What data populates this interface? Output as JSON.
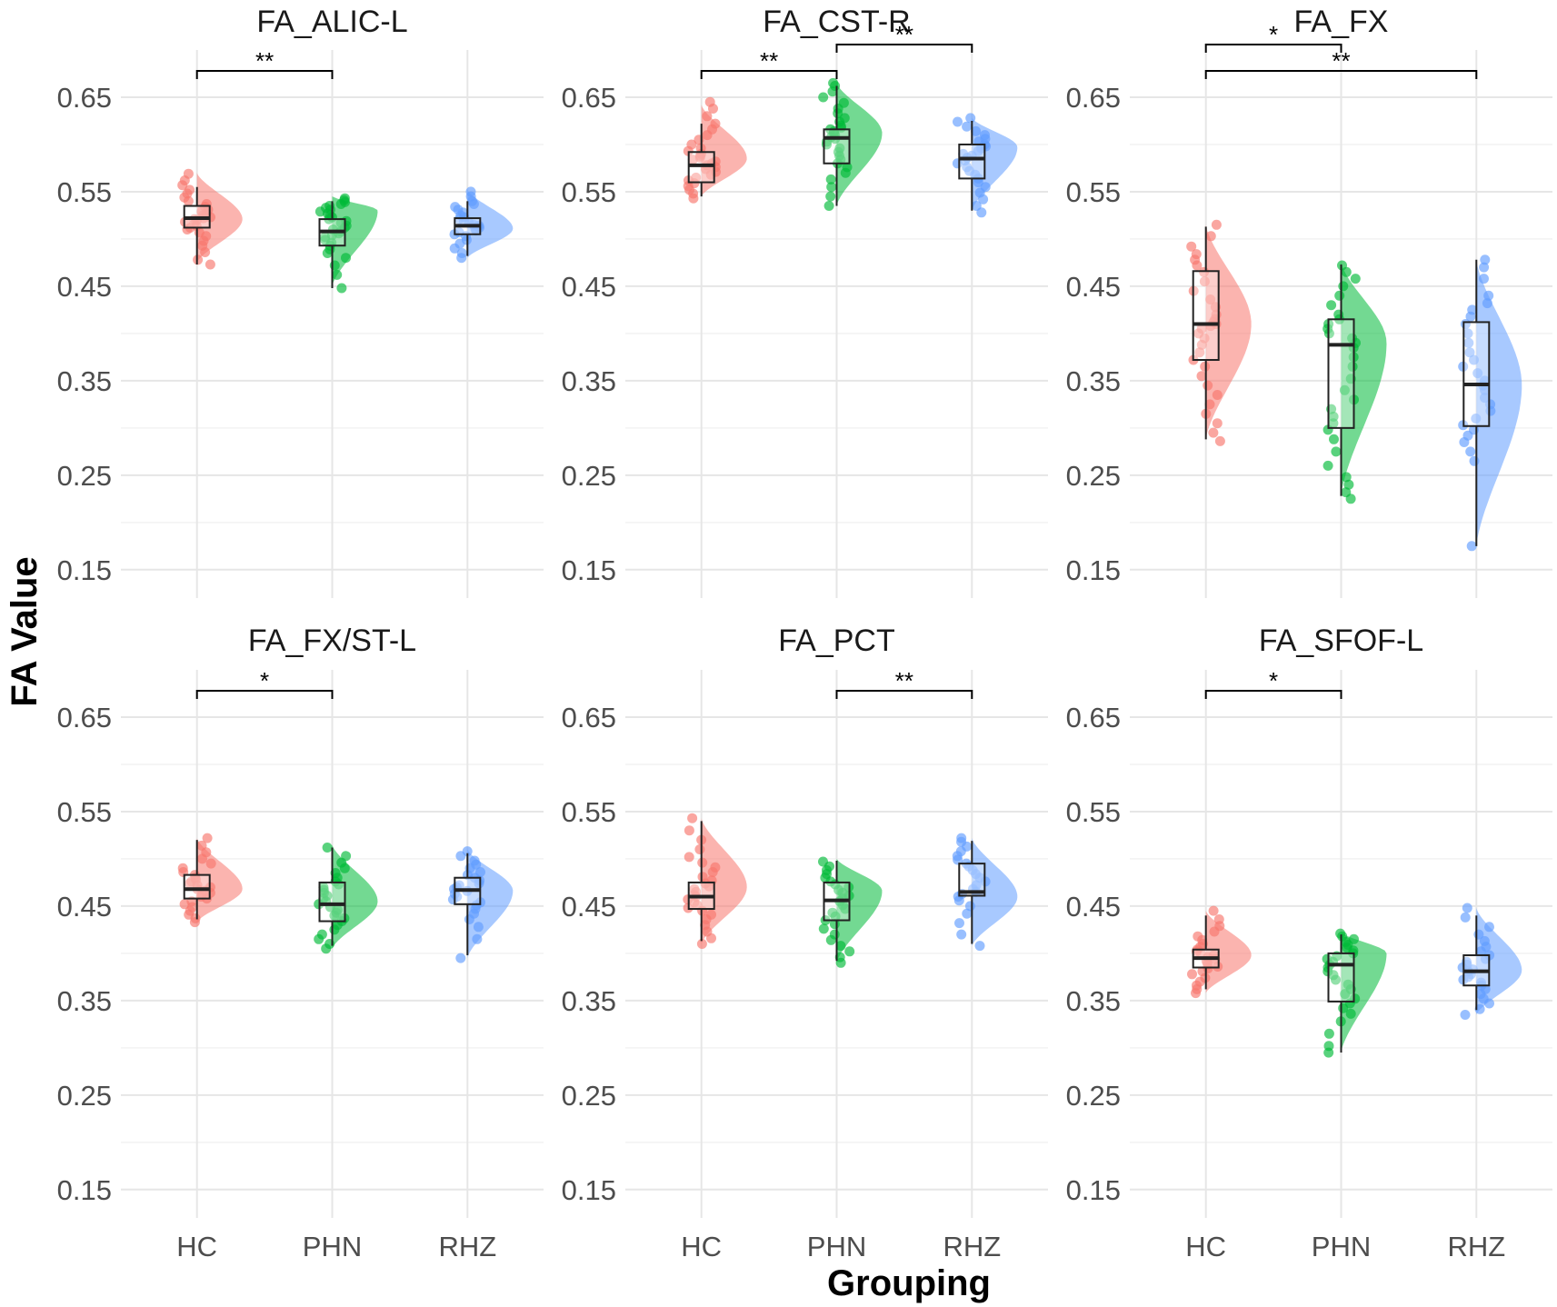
{
  "figure": {
    "ylabel": "FA Value",
    "xlabel": "Grouping"
  },
  "colors": {
    "HC": "#F8766D",
    "PHN": "#00BA38",
    "RHZ": "#619CFF",
    "grid_major": "#e6e6e6",
    "grid_minor": "#f2f2f2",
    "axis_text": "#4d4d4d",
    "title_text": "#1a1a1a",
    "box_stroke": "#222222"
  },
  "chart_data": [
    {
      "type": "raincloud",
      "title": "FA_ALIC-L",
      "categories": [
        "HC",
        "PHN",
        "RHZ"
      ],
      "ylim": [
        0.12,
        0.7
      ],
      "yticks": [
        0.15,
        0.25,
        0.35,
        0.45,
        0.55,
        0.65
      ],
      "ytick_labels": [
        "0.15",
        "0.25",
        "0.35",
        "0.45",
        "0.55",
        "0.65"
      ],
      "series": [
        {
          "name": "HC",
          "min": 0.473,
          "q1": 0.512,
          "median": 0.522,
          "q3": 0.535,
          "max": 0.555,
          "density_peak": 0.521,
          "density_lo": 0.475,
          "density_hi": 0.57,
          "points": [
            0.473,
            0.478,
            0.486,
            0.493,
            0.498,
            0.503,
            0.507,
            0.51,
            0.512,
            0.514,
            0.516,
            0.518,
            0.52,
            0.521,
            0.522,
            0.523,
            0.525,
            0.527,
            0.529,
            0.531,
            0.534,
            0.537,
            0.54,
            0.544,
            0.548,
            0.552,
            0.557,
            0.562,
            0.569
          ]
        },
        {
          "name": "PHN",
          "min": 0.448,
          "q1": 0.493,
          "median": 0.508,
          "q3": 0.521,
          "max": 0.54,
          "density_peak": 0.53,
          "density_lo": 0.45,
          "density_hi": 0.545,
          "points": [
            0.448,
            0.462,
            0.472,
            0.48,
            0.485,
            0.489,
            0.493,
            0.496,
            0.499,
            0.502,
            0.504,
            0.506,
            0.508,
            0.51,
            0.512,
            0.514,
            0.517,
            0.519,
            0.521,
            0.523,
            0.525,
            0.527,
            0.529,
            0.531,
            0.533,
            0.535,
            0.537,
            0.539,
            0.541,
            0.543
          ]
        },
        {
          "name": "RHZ",
          "min": 0.482,
          "q1": 0.505,
          "median": 0.514,
          "q3": 0.522,
          "max": 0.54,
          "density_peak": 0.511,
          "density_lo": 0.48,
          "density_hi": 0.552,
          "points": [
            0.48,
            0.485,
            0.49,
            0.495,
            0.499,
            0.503,
            0.505,
            0.507,
            0.509,
            0.511,
            0.512,
            0.513,
            0.514,
            0.515,
            0.517,
            0.519,
            0.521,
            0.523,
            0.525,
            0.528,
            0.531,
            0.534,
            0.537,
            0.54,
            0.545,
            0.55
          ]
        }
      ],
      "significance": [
        {
          "from": "HC",
          "to": "PHN",
          "label": "**",
          "level": 0
        }
      ]
    },
    {
      "type": "raincloud",
      "title": "FA_CST-R",
      "categories": [
        "HC",
        "PHN",
        "RHZ"
      ],
      "ylim": [
        0.12,
        0.7
      ],
      "yticks": [
        0.15,
        0.25,
        0.35,
        0.45,
        0.55,
        0.65
      ],
      "ytick_labels": [
        "0.15",
        "0.25",
        "0.35",
        "0.45",
        "0.55",
        "0.65"
      ],
      "series": [
        {
          "name": "HC",
          "min": 0.545,
          "q1": 0.56,
          "median": 0.578,
          "q3": 0.592,
          "max": 0.622,
          "density_peak": 0.585,
          "density_lo": 0.545,
          "density_hi": 0.642,
          "points": [
            0.543,
            0.548,
            0.552,
            0.556,
            0.559,
            0.562,
            0.565,
            0.568,
            0.571,
            0.574,
            0.576,
            0.578,
            0.58,
            0.582,
            0.584,
            0.586,
            0.588,
            0.59,
            0.593,
            0.596,
            0.6,
            0.605,
            0.61,
            0.616,
            0.622,
            0.63,
            0.638,
            0.645
          ]
        },
        {
          "name": "PHN",
          "min": 0.535,
          "q1": 0.58,
          "median": 0.607,
          "q3": 0.616,
          "max": 0.662,
          "density_peak": 0.612,
          "density_lo": 0.535,
          "density_hi": 0.665,
          "points": [
            0.535,
            0.545,
            0.555,
            0.563,
            0.57,
            0.576,
            0.58,
            0.584,
            0.588,
            0.592,
            0.596,
            0.6,
            0.603,
            0.606,
            0.608,
            0.61,
            0.612,
            0.614,
            0.616,
            0.618,
            0.62,
            0.624,
            0.628,
            0.633,
            0.638,
            0.644,
            0.65,
            0.656,
            0.662,
            0.665
          ]
        },
        {
          "name": "RHZ",
          "min": 0.53,
          "q1": 0.564,
          "median": 0.585,
          "q3": 0.6,
          "max": 0.625,
          "density_peak": 0.597,
          "density_lo": 0.53,
          "density_hi": 0.628,
          "points": [
            0.528,
            0.535,
            0.542,
            0.549,
            0.555,
            0.56,
            0.564,
            0.568,
            0.572,
            0.576,
            0.58,
            0.583,
            0.586,
            0.588,
            0.59,
            0.593,
            0.596,
            0.598,
            0.6,
            0.603,
            0.606,
            0.61,
            0.614,
            0.619,
            0.624,
            0.628
          ]
        }
      ],
      "significance": [
        {
          "from": "HC",
          "to": "PHN",
          "label": "**",
          "level": 0
        },
        {
          "from": "PHN",
          "to": "RHZ",
          "label": "**",
          "level": 1
        }
      ]
    },
    {
      "type": "raincloud",
      "title": "FA_FX",
      "categories": [
        "HC",
        "PHN",
        "RHZ"
      ],
      "ylim": [
        0.12,
        0.7
      ],
      "yticks": [
        0.15,
        0.25,
        0.35,
        0.45,
        0.55,
        0.65
      ],
      "ytick_labels": [
        "0.15",
        "0.25",
        "0.35",
        "0.45",
        "0.55",
        "0.65"
      ],
      "series": [
        {
          "name": "HC",
          "min": 0.288,
          "q1": 0.372,
          "median": 0.41,
          "q3": 0.466,
          "max": 0.513,
          "density_peak": 0.41,
          "density_lo": 0.288,
          "density_hi": 0.515,
          "points": [
            0.286,
            0.295,
            0.305,
            0.315,
            0.325,
            0.335,
            0.345,
            0.355,
            0.365,
            0.372,
            0.38,
            0.388,
            0.395,
            0.4,
            0.405,
            0.408,
            0.41,
            0.412,
            0.415,
            0.42,
            0.428,
            0.436,
            0.445,
            0.455,
            0.465,
            0.472,
            0.478,
            0.484,
            0.492,
            0.503,
            0.515
          ]
        },
        {
          "name": "PHN",
          "min": 0.228,
          "q1": 0.3,
          "median": 0.388,
          "q3": 0.415,
          "max": 0.473,
          "density_peak": 0.39,
          "density_lo": 0.228,
          "density_hi": 0.475,
          "points": [
            0.225,
            0.232,
            0.24,
            0.248,
            0.26,
            0.275,
            0.288,
            0.298,
            0.305,
            0.312,
            0.32,
            0.33,
            0.34,
            0.352,
            0.365,
            0.375,
            0.385,
            0.39,
            0.395,
            0.4,
            0.405,
            0.41,
            0.415,
            0.42,
            0.43,
            0.44,
            0.45,
            0.458,
            0.465,
            0.472
          ]
        },
        {
          "name": "RHZ",
          "min": 0.175,
          "q1": 0.302,
          "median": 0.346,
          "q3": 0.412,
          "max": 0.478,
          "density_peak": 0.345,
          "density_lo": 0.175,
          "density_hi": 0.478,
          "points": [
            0.175,
            0.265,
            0.275,
            0.285,
            0.292,
            0.298,
            0.303,
            0.31,
            0.318,
            0.325,
            0.332,
            0.34,
            0.345,
            0.35,
            0.358,
            0.365,
            0.372,
            0.38,
            0.39,
            0.4,
            0.41,
            0.418,
            0.425,
            0.432,
            0.44,
            0.458,
            0.47,
            0.478
          ]
        }
      ],
      "significance": [
        {
          "from": "HC",
          "to": "PHN",
          "label": "*",
          "level": 1
        },
        {
          "from": "HC",
          "to": "RHZ",
          "label": "**",
          "level": 0
        }
      ]
    },
    {
      "type": "raincloud",
      "title": "FA_FX/ST-L",
      "categories": [
        "HC",
        "PHN",
        "RHZ"
      ],
      "ylim": [
        0.12,
        0.7
      ],
      "yticks": [
        0.15,
        0.25,
        0.35,
        0.45,
        0.55,
        0.65
      ],
      "ytick_labels": [
        "0.15",
        "0.25",
        "0.35",
        "0.45",
        "0.55",
        "0.65"
      ],
      "series": [
        {
          "name": "HC",
          "min": 0.436,
          "q1": 0.458,
          "median": 0.468,
          "q3": 0.483,
          "max": 0.52,
          "density_peak": 0.468,
          "density_lo": 0.433,
          "density_hi": 0.522,
          "points": [
            0.433,
            0.437,
            0.441,
            0.445,
            0.449,
            0.452,
            0.455,
            0.458,
            0.46,
            0.462,
            0.464,
            0.466,
            0.468,
            0.47,
            0.472,
            0.474,
            0.476,
            0.478,
            0.48,
            0.483,
            0.486,
            0.49,
            0.495,
            0.5,
            0.507,
            0.514,
            0.522
          ]
        },
        {
          "name": "PHN",
          "min": 0.408,
          "q1": 0.434,
          "median": 0.452,
          "q3": 0.475,
          "max": 0.512,
          "density_peak": 0.455,
          "density_lo": 0.405,
          "density_hi": 0.515,
          "points": [
            0.405,
            0.41,
            0.415,
            0.42,
            0.425,
            0.43,
            0.434,
            0.437,
            0.44,
            0.443,
            0.446,
            0.449,
            0.452,
            0.455,
            0.458,
            0.461,
            0.464,
            0.467,
            0.47,
            0.473,
            0.476,
            0.48,
            0.485,
            0.49,
            0.496,
            0.503,
            0.512
          ]
        },
        {
          "name": "RHZ",
          "min": 0.398,
          "q1": 0.452,
          "median": 0.467,
          "q3": 0.48,
          "max": 0.506,
          "density_peak": 0.466,
          "density_lo": 0.395,
          "density_hi": 0.51,
          "points": [
            0.395,
            0.415,
            0.428,
            0.436,
            0.442,
            0.447,
            0.451,
            0.454,
            0.457,
            0.46,
            0.463,
            0.466,
            0.468,
            0.47,
            0.472,
            0.474,
            0.477,
            0.48,
            0.483,
            0.486,
            0.49,
            0.494,
            0.498,
            0.503,
            0.508
          ]
        }
      ],
      "significance": [
        {
          "from": "HC",
          "to": "PHN",
          "label": "*",
          "level": 0
        }
      ]
    },
    {
      "type": "raincloud",
      "title": "FA_PCT",
      "categories": [
        "HC",
        "PHN",
        "RHZ"
      ],
      "ylim": [
        0.12,
        0.7
      ],
      "yticks": [
        0.15,
        0.25,
        0.35,
        0.45,
        0.55,
        0.65
      ],
      "ytick_labels": [
        "0.15",
        "0.25",
        "0.35",
        "0.45",
        "0.55",
        "0.65"
      ],
      "series": [
        {
          "name": "HC",
          "min": 0.413,
          "q1": 0.447,
          "median": 0.46,
          "q3": 0.475,
          "max": 0.54,
          "density_peak": 0.47,
          "density_lo": 0.41,
          "density_hi": 0.543,
          "points": [
            0.41,
            0.416,
            0.423,
            0.43,
            0.436,
            0.441,
            0.445,
            0.448,
            0.451,
            0.454,
            0.457,
            0.46,
            0.462,
            0.465,
            0.468,
            0.471,
            0.474,
            0.477,
            0.481,
            0.486,
            0.491,
            0.496,
            0.502,
            0.51,
            0.52,
            0.53,
            0.543
          ]
        },
        {
          "name": "PHN",
          "min": 0.392,
          "q1": 0.435,
          "median": 0.456,
          "q3": 0.475,
          "max": 0.498,
          "density_peak": 0.466,
          "density_lo": 0.39,
          "density_hi": 0.5,
          "points": [
            0.39,
            0.396,
            0.402,
            0.408,
            0.414,
            0.42,
            0.426,
            0.431,
            0.435,
            0.439,
            0.443,
            0.447,
            0.451,
            0.455,
            0.458,
            0.461,
            0.464,
            0.467,
            0.47,
            0.473,
            0.476,
            0.48,
            0.484,
            0.488,
            0.492,
            0.497
          ]
        },
        {
          "name": "RHZ",
          "min": 0.41,
          "q1": 0.461,
          "median": 0.465,
          "q3": 0.495,
          "max": 0.519,
          "density_peak": 0.46,
          "density_lo": 0.408,
          "density_hi": 0.522,
          "points": [
            0.408,
            0.42,
            0.432,
            0.442,
            0.45,
            0.456,
            0.46,
            0.463,
            0.465,
            0.468,
            0.472,
            0.476,
            0.48,
            0.484,
            0.488,
            0.492,
            0.495,
            0.499,
            0.503,
            0.508,
            0.513,
            0.518,
            0.522
          ]
        }
      ],
      "significance": [
        {
          "from": "PHN",
          "to": "RHZ",
          "label": "**",
          "level": 0
        }
      ]
    },
    {
      "type": "raincloud",
      "title": "FA_SFOF-L",
      "categories": [
        "HC",
        "PHN",
        "RHZ"
      ],
      "ylim": [
        0.12,
        0.7
      ],
      "yticks": [
        0.15,
        0.25,
        0.35,
        0.45,
        0.55,
        0.65
      ],
      "ytick_labels": [
        "0.15",
        "0.25",
        "0.35",
        "0.45",
        "0.55",
        "0.65"
      ],
      "series": [
        {
          "name": "HC",
          "min": 0.362,
          "q1": 0.385,
          "median": 0.395,
          "q3": 0.404,
          "max": 0.44,
          "density_peak": 0.398,
          "density_lo": 0.358,
          "density_hi": 0.445,
          "points": [
            0.358,
            0.362,
            0.366,
            0.37,
            0.374,
            0.378,
            0.381,
            0.384,
            0.386,
            0.388,
            0.39,
            0.392,
            0.394,
            0.396,
            0.398,
            0.4,
            0.402,
            0.404,
            0.407,
            0.41,
            0.414,
            0.418,
            0.423,
            0.429,
            0.436,
            0.445
          ]
        },
        {
          "name": "PHN",
          "min": 0.295,
          "q1": 0.349,
          "median": 0.388,
          "q3": 0.4,
          "max": 0.42,
          "density_peak": 0.4,
          "density_lo": 0.295,
          "density_hi": 0.422,
          "points": [
            0.295,
            0.302,
            0.315,
            0.328,
            0.336,
            0.342,
            0.347,
            0.352,
            0.357,
            0.362,
            0.367,
            0.372,
            0.377,
            0.381,
            0.385,
            0.388,
            0.391,
            0.394,
            0.397,
            0.4,
            0.403,
            0.406,
            0.409,
            0.412,
            0.415,
            0.418,
            0.421
          ]
        },
        {
          "name": "RHZ",
          "min": 0.34,
          "q1": 0.366,
          "median": 0.381,
          "q3": 0.398,
          "max": 0.44,
          "density_peak": 0.382,
          "density_lo": 0.335,
          "density_hi": 0.448,
          "points": [
            0.335,
            0.341,
            0.347,
            0.352,
            0.357,
            0.362,
            0.366,
            0.369,
            0.372,
            0.375,
            0.378,
            0.381,
            0.383,
            0.385,
            0.388,
            0.391,
            0.394,
            0.398,
            0.402,
            0.407,
            0.413,
            0.42,
            0.428,
            0.438,
            0.448
          ]
        }
      ],
      "significance": [
        {
          "from": "HC",
          "to": "PHN",
          "label": "*",
          "level": 0
        }
      ]
    }
  ]
}
